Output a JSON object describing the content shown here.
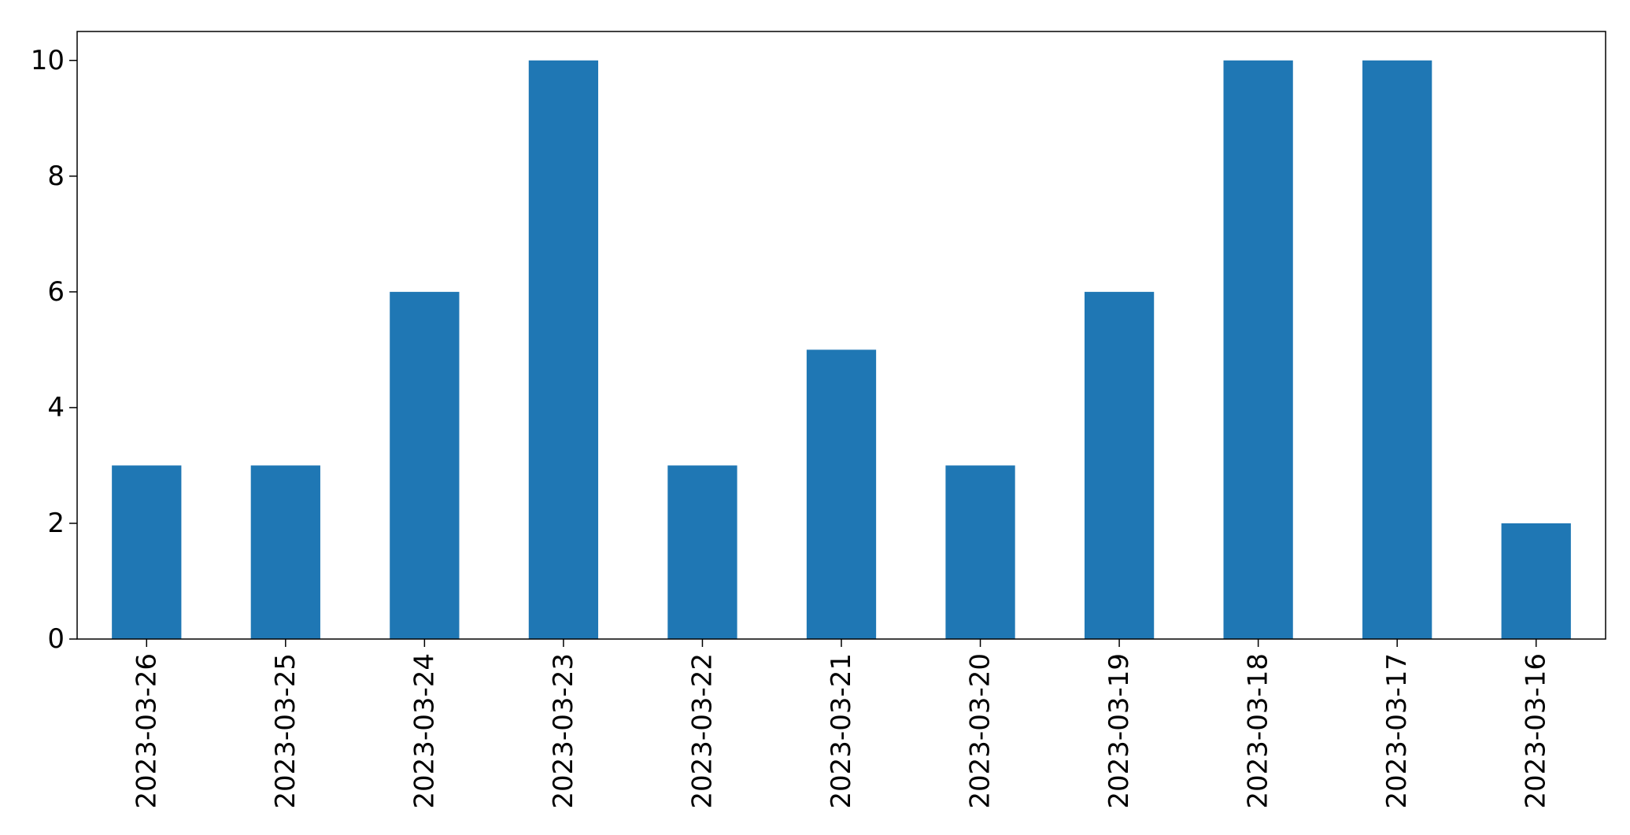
{
  "chart_data": {
    "type": "bar",
    "title": "",
    "xlabel": "",
    "ylabel": "",
    "categories": [
      "2023-03-26",
      "2023-03-25",
      "2023-03-24",
      "2023-03-23",
      "2023-03-22",
      "2023-03-21",
      "2023-03-20",
      "2023-03-19",
      "2023-03-18",
      "2023-03-17",
      "2023-03-16"
    ],
    "values": [
      3,
      3,
      6,
      10,
      3,
      5,
      3,
      6,
      10,
      10,
      2
    ],
    "ylim": [
      0,
      10.5
    ],
    "yticks": [
      0,
      2,
      4,
      6,
      8,
      10
    ],
    "grid": false,
    "legend": "none",
    "bar_color": "#1f77b4"
  }
}
